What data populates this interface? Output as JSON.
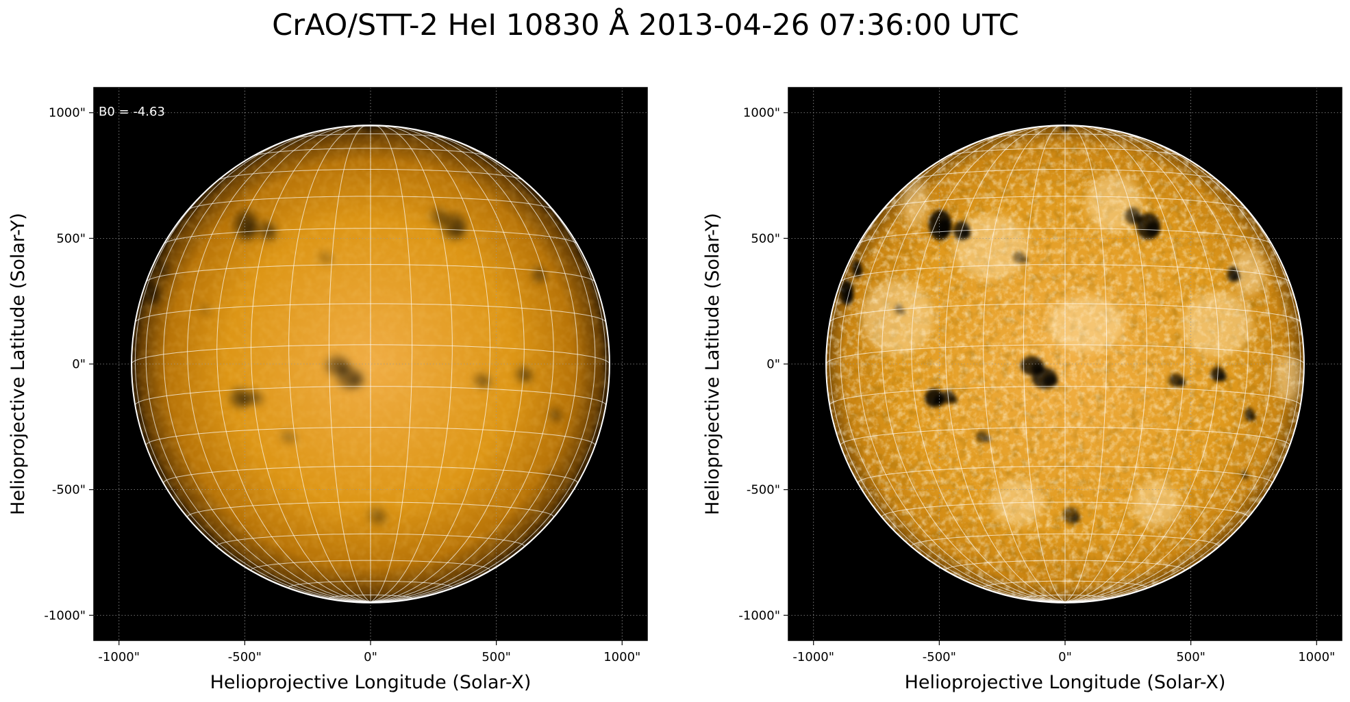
{
  "figure": {
    "title": "CrAO/STT-2 HeI 10830 Å 2013-04-26 07:36:00 UTC"
  },
  "colors": {
    "background_frame": "#000000",
    "disk_light": "#f2b24a",
    "disk_mid": "#d9900e",
    "disk_limb": "#2a1800",
    "grid_line": "#ffffff",
    "limb_circle": "#ffffff",
    "dark_feature": "#000000",
    "bright_feature": "#ffe7b8"
  },
  "axis_ticks": {
    "x": [
      "-1000\"",
      "-500\"",
      "0\"",
      "500\"",
      "1000\""
    ],
    "y": [
      "1000\"",
      "500\"",
      "0\"",
      "-500\"",
      "-1000\""
    ],
    "values": [
      -1000,
      -500,
      0,
      500,
      1000
    ]
  },
  "panels": [
    {
      "xlabel": "Helioprojective Longitude (Solar-X)",
      "ylabel": "Helioprojective Latitude (Solar-Y)",
      "annotation": "B0 = -4.63",
      "xlim": [
        -1100,
        1100
      ],
      "ylim": [
        -1100,
        1100
      ],
      "solar_radius_arcsec": 950,
      "b0_deg": -4.63,
      "contrast": "low"
    },
    {
      "xlabel": "Helioprojective Longitude (Solar-X)",
      "ylabel": "Helioprojective Latitude (Solar-Y)",
      "annotation": "",
      "xlim": [
        -1100,
        1100
      ],
      "ylim": [
        -1100,
        1100
      ],
      "solar_radius_arcsec": 950,
      "b0_deg": -4.63,
      "contrast": "high"
    }
  ]
}
